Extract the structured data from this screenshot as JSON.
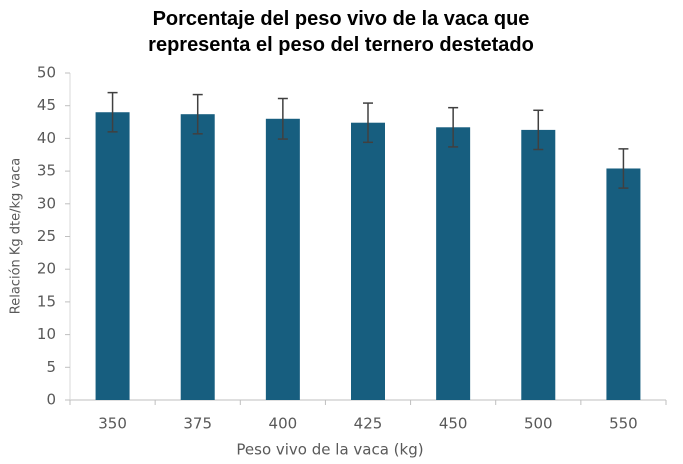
{
  "chart_data": {
    "type": "bar",
    "title": "Porcentaje del peso vivo de la vaca que representa el peso del ternero destetado",
    "x_label": "Peso vivo de la vaca (kg)",
    "y_label": "Relación Kg dte/kg vaca",
    "categories": [
      "350",
      "375",
      "400",
      "425",
      "450",
      "500",
      "550"
    ],
    "values": [
      44.0,
      43.7,
      43.0,
      42.4,
      41.7,
      41.3,
      35.4
    ],
    "errors": [
      3.0,
      3.0,
      3.1,
      3.0,
      3.0,
      3.0,
      3.0
    ],
    "color": "#175e7f",
    "ylim": [
      0,
      50
    ],
    "yticks": [
      0,
      5,
      10,
      15,
      20,
      25,
      30,
      35,
      40,
      45,
      50
    ],
    "grid": false
  }
}
